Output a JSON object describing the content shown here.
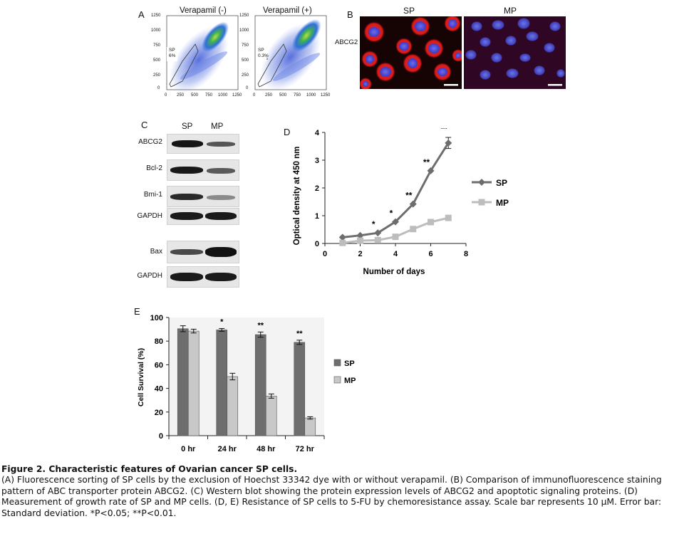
{
  "panelA": {
    "letter": "A",
    "plots": [
      {
        "title": "Verapamil (-)",
        "gate_label": "SP",
        "gate_pct": "6%"
      },
      {
        "title": "Verapamil (+)",
        "gate_label": "SP",
        "gate_pct": "0.3%"
      }
    ],
    "y_ticks": [
      "1250",
      "1000",
      "750",
      "500",
      "250",
      "0"
    ],
    "x_ticks": [
      "0",
      "250",
      "500",
      "750",
      "1000",
      "1250"
    ]
  },
  "panelB": {
    "letter": "B",
    "columns": [
      "SP",
      "MP"
    ],
    "row_label": "ABCG2"
  },
  "panelC": {
    "letter": "C",
    "columns": [
      "SP",
      "MP"
    ],
    "rows": [
      "ABCG2",
      "Bcl-2",
      "Bmi-1",
      "GAPDH",
      "Bax",
      "GAPDH"
    ]
  },
  "panelD": {
    "letter": "D",
    "chart_data": {
      "type": "line",
      "xlabel": "Number of days",
      "ylabel": "Optical density at 450 nm",
      "xlim": [
        0,
        8
      ],
      "ylim": [
        0,
        4
      ],
      "x_ticks": [
        "0",
        "2",
        "4",
        "6",
        "8"
      ],
      "y_ticks": [
        "0",
        "1",
        "2",
        "3",
        "4"
      ],
      "legend_position": "right",
      "series": [
        {
          "name": "SP",
          "color": "#6d6d6d",
          "marker": "diamond",
          "x": [
            1,
            2,
            3,
            4,
            5,
            6,
            7
          ],
          "y": [
            0.22,
            0.29,
            0.38,
            0.78,
            1.42,
            2.62,
            3.62
          ],
          "error": [
            0,
            0,
            0,
            0,
            0,
            0,
            0.2
          ]
        },
        {
          "name": "MP",
          "color": "#bdbdbd",
          "marker": "square",
          "x": [
            1,
            2,
            3,
            4,
            5,
            6,
            7
          ],
          "y": [
            0.02,
            0.1,
            0.12,
            0.24,
            0.52,
            0.77,
            0.92
          ]
        }
      ],
      "annotations": [
        {
          "x": 3,
          "text": "*"
        },
        {
          "x": 4,
          "text": "*"
        },
        {
          "x": 5,
          "text": "**"
        },
        {
          "x": 6,
          "text": "**"
        },
        {
          "x": 7,
          "text": "**"
        }
      ]
    }
  },
  "panelE": {
    "letter": "E",
    "chart_data": {
      "type": "bar",
      "ylabel": "Cell Survival (%)",
      "ylim": [
        0,
        100
      ],
      "y_ticks": [
        "0",
        "20",
        "40",
        "60",
        "80",
        "100"
      ],
      "categories": [
        "0 hr",
        "24 hr",
        "48 hr",
        "72 hr"
      ],
      "grid": false,
      "legend_position": "right",
      "series": [
        {
          "name": "SP",
          "color": "#6e6e6e",
          "values": [
            90.5,
            89.5,
            85.5,
            79
          ],
          "error": [
            2.5,
            1.2,
            2.2,
            1.8
          ]
        },
        {
          "name": "MP",
          "color": "#c8c8c8",
          "values": [
            88.5,
            50,
            33.5,
            15
          ],
          "error": [
            1.6,
            2.8,
            1.8,
            1
          ]
        }
      ],
      "annotations": [
        "",
        "*",
        "**",
        "**"
      ]
    }
  },
  "caption": {
    "title": "Figure 2. Characteristic features of Ovarian cancer SP cells.",
    "body": "(A) Fluorescence sorting of SP cells by the exclusion of Hoechst 33342 dye with or without verapamil. (B) Comparison of immunofluorescence staining pattern of ABC transporter protein ABCG2. (C) Western blot showing the protein expression levels of ABCG2 and apoptotic signaling proteins. (D) Measurement of growth rate of SP and MP cells. (D, E) Resistance of SP cells to 5-FU by chemoresistance assay. Scale bar represents 10 μM. Error bar: Standard deviation. *P<0.05; **P<0.01."
  }
}
